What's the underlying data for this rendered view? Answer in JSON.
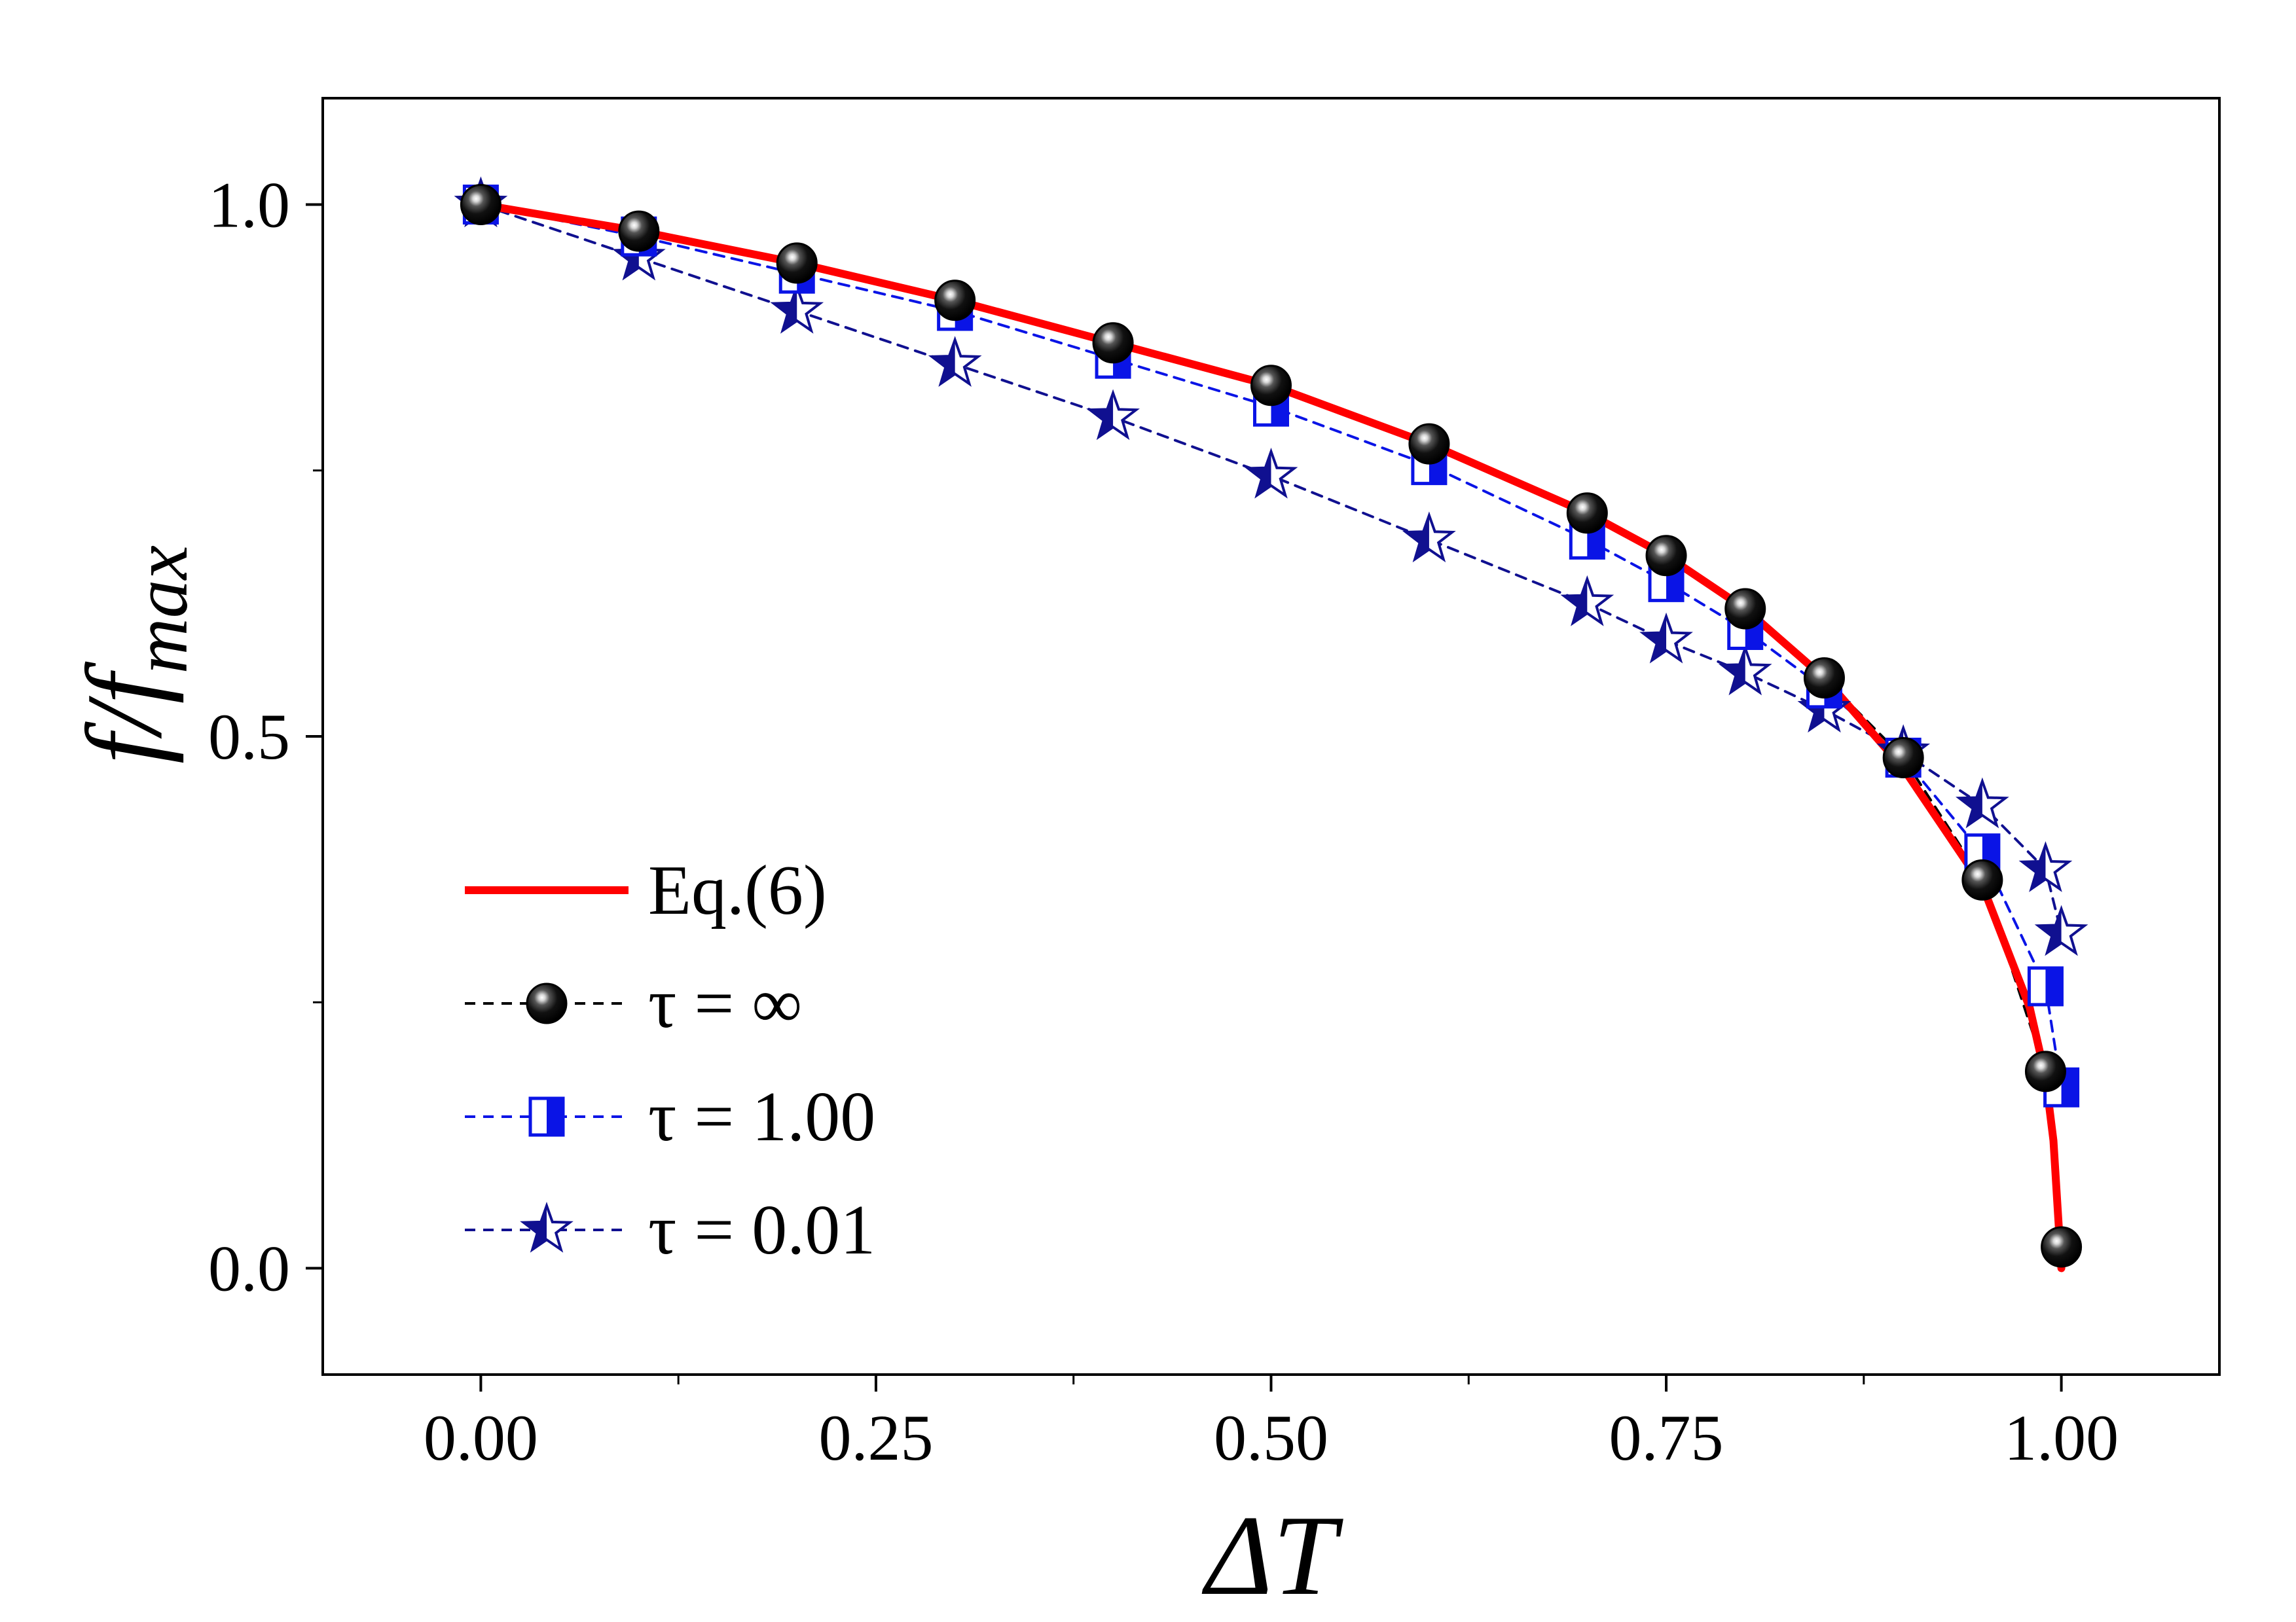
{
  "chart_data": {
    "type": "line",
    "title": "",
    "xlabel": "ΔT",
    "ylabel": "f/f_max",
    "ylabel_parts": {
      "main": "f/f",
      "sub": "max"
    },
    "xlim": [
      -0.1,
      1.1
    ],
    "ylim": [
      -0.1,
      1.1
    ],
    "xticks": [
      0.0,
      0.25,
      0.5,
      0.75,
      1.0
    ],
    "xtick_labels": [
      "0.00",
      "0.25",
      "0.50",
      "0.75",
      "1.00"
    ],
    "xminor": [
      0.125,
      0.375,
      0.625,
      0.875
    ],
    "yticks": [
      0.0,
      0.5,
      1.0
    ],
    "ytick_labels": [
      "0.0",
      "0.5",
      "1.0"
    ],
    "yminor": [
      0.25,
      0.75
    ],
    "grid": false,
    "legend_position": "lower-left",
    "colors": {
      "eq": "#ff0000",
      "tau_inf": "#000000",
      "tau_1": "#0a14e6",
      "tau_001": "#101090"
    },
    "series": [
      {
        "name": "Eq.(6)",
        "style": "solid",
        "marker": "none",
        "x": [
          0.0,
          0.1,
          0.2,
          0.3,
          0.4,
          0.5,
          0.6,
          0.7,
          0.75,
          0.8,
          0.85,
          0.9,
          0.95,
          0.98,
          0.99,
          0.995,
          1.0
        ],
        "y": [
          1.0,
          0.975,
          0.945,
          0.91,
          0.87,
          0.83,
          0.775,
          0.71,
          0.67,
          0.62,
          0.555,
          0.47,
          0.36,
          0.245,
          0.18,
          0.12,
          0.0
        ]
      },
      {
        "name": "τ = ∞",
        "style": "dashed",
        "marker": "sphere",
        "x": [
          0.0,
          0.1,
          0.2,
          0.3,
          0.4,
          0.5,
          0.6,
          0.7,
          0.75,
          0.8,
          0.85,
          0.9,
          0.95,
          0.99,
          1.0
        ],
        "y": [
          1.0,
          0.975,
          0.945,
          0.91,
          0.87,
          0.83,
          0.775,
          0.71,
          0.67,
          0.62,
          0.555,
          0.48,
          0.365,
          0.185,
          0.02
        ]
      },
      {
        "name": "τ = 1.00",
        "style": "dashed",
        "marker": "half-square",
        "x": [
          0.0,
          0.1,
          0.2,
          0.3,
          0.4,
          0.5,
          0.6,
          0.7,
          0.75,
          0.8,
          0.85,
          0.9,
          0.95,
          0.99,
          1.0
        ],
        "y": [
          1.0,
          0.97,
          0.935,
          0.9,
          0.855,
          0.81,
          0.755,
          0.685,
          0.645,
          0.6,
          0.545,
          0.48,
          0.39,
          0.265,
          0.17
        ]
      },
      {
        "name": "τ = 0.01",
        "style": "dashed",
        "marker": "half-star",
        "x": [
          0.0,
          0.1,
          0.2,
          0.3,
          0.4,
          0.5,
          0.6,
          0.7,
          0.75,
          0.8,
          0.85,
          0.9,
          0.95,
          0.99,
          1.0
        ],
        "y": [
          1.0,
          0.95,
          0.9,
          0.85,
          0.8,
          0.745,
          0.685,
          0.625,
          0.59,
          0.56,
          0.525,
          0.485,
          0.435,
          0.375,
          0.315
        ]
      }
    ],
    "legend": [
      {
        "label": "Eq.(6)",
        "series": 0
      },
      {
        "label": "τ = ∞",
        "series": 1
      },
      {
        "label": "τ = 1.00",
        "series": 2
      },
      {
        "label": "τ = 0.01",
        "series": 3
      }
    ]
  }
}
